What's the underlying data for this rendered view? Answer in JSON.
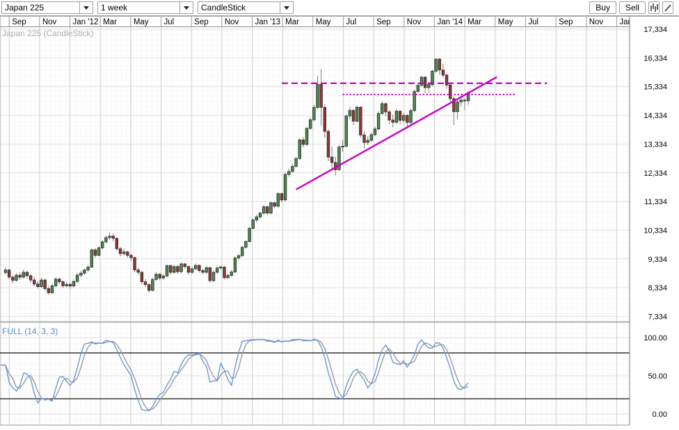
{
  "toolbar": {
    "symbol_select": {
      "value": "Japan 225"
    },
    "interval_select": {
      "value": "1 week"
    },
    "chart_type_select": {
      "value": "CandleStick"
    },
    "buy_label": "Buy",
    "sell_label": "Sell",
    "icons": [
      "bar-chart-icon",
      "trendline-icon",
      "chevron-down-icon"
    ]
  },
  "main_panel": {
    "title": "Japan 225 (CandleStick)",
    "colors": {
      "up_candle": "#4d8950",
      "down_candle": "#933637",
      "wick": "#7d7d7d",
      "annotation": "#c400c4",
      "title_text": "#b0adad",
      "grid_fine": "#f4f1f1",
      "grid_major_h": "#e4e1e1",
      "grid_major_v": "#d2cfcf"
    }
  },
  "indicator_panel": {
    "label": "FULL (14, 3, 3)",
    "label_color": "#5b8cd3",
    "k_line_color": "#6b96d8",
    "d_line_color": "#9a9a9a",
    "overbought_level": 80,
    "oversold_level": 20,
    "y_axis_labels": [
      "100.00",
      "50.00",
      "0.00"
    ]
  },
  "chart_data": [
    {
      "type": "candlestick",
      "title": "Japan 225 (CandleStick)",
      "symbol": "Japan 225",
      "interval": "1 week",
      "x_axis_labels": [
        "Sep",
        "Nov",
        "Jan '12",
        "Mar",
        "May",
        "Jul",
        "Sep",
        "Nov",
        "Jan '13",
        "Mar",
        "May",
        "Jul",
        "Sep",
        "Nov",
        "Jan '14",
        "Mar",
        "May",
        "Jul",
        "Sep",
        "Nov",
        "Jan"
      ],
      "y_axis_labels": [
        "17,334",
        "16,334",
        "15,334",
        "14,334",
        "13,334",
        "12,334",
        "11,334",
        "10,334",
        "9,334",
        "8,334",
        "7,334"
      ],
      "ylim": [
        7334,
        17334
      ],
      "grid": true,
      "ohlc": [
        [
          8860,
          9040,
          8790,
          8950
        ],
        [
          8950,
          9005,
          8620,
          8700
        ],
        [
          8700,
          8760,
          8480,
          8590
        ],
        [
          8590,
          8840,
          8540,
          8770
        ],
        [
          8770,
          8860,
          8605,
          8700
        ],
        [
          8700,
          8970,
          8650,
          8870
        ],
        [
          8870,
          8925,
          8660,
          8750
        ],
        [
          8750,
          8810,
          8510,
          8600
        ],
        [
          8600,
          8720,
          8380,
          8460
        ],
        [
          8460,
          8560,
          8300,
          8370
        ],
        [
          8370,
          8680,
          8320,
          8600
        ],
        [
          8600,
          8640,
          8230,
          8300
        ],
        [
          8300,
          8400,
          8080,
          8160
        ],
        [
          8160,
          8470,
          8110,
          8400
        ],
        [
          8400,
          8700,
          8360,
          8630
        ],
        [
          8630,
          8690,
          8460,
          8540
        ],
        [
          8540,
          8590,
          8330,
          8400
        ],
        [
          8400,
          8530,
          8340,
          8450
        ],
        [
          8450,
          8510,
          8300,
          8390
        ],
        [
          8390,
          8620,
          8350,
          8550
        ],
        [
          8550,
          8840,
          8500,
          8770
        ],
        [
          8770,
          8920,
          8700,
          8840
        ],
        [
          8840,
          9010,
          8780,
          8950
        ],
        [
          8950,
          9120,
          8890,
          9050
        ],
        [
          9050,
          9700,
          9020,
          9650
        ],
        [
          9650,
          9710,
          9380,
          9460
        ],
        [
          9460,
          9780,
          9420,
          9720
        ],
        [
          9720,
          9990,
          9660,
          9930
        ],
        [
          9930,
          10150,
          9870,
          10080
        ],
        [
          10080,
          10255,
          10000,
          10130
        ],
        [
          10130,
          10220,
          9950,
          10050
        ],
        [
          10050,
          10100,
          9620,
          9690
        ],
        [
          9690,
          9750,
          9420,
          9520
        ],
        [
          9520,
          9690,
          9450,
          9580
        ],
        [
          9580,
          9630,
          9380,
          9460
        ],
        [
          9460,
          9520,
          9280,
          9380
        ],
        [
          9380,
          9420,
          8870,
          8950
        ],
        [
          8950,
          9030,
          8780,
          8870
        ],
        [
          8870,
          8920,
          8450,
          8540
        ],
        [
          8540,
          8630,
          8360,
          8440
        ],
        [
          8440,
          8490,
          8160,
          8240
        ],
        [
          8240,
          8680,
          8200,
          8620
        ],
        [
          8620,
          8880,
          8570,
          8800
        ],
        [
          8800,
          8850,
          8590,
          8670
        ],
        [
          8670,
          8810,
          8610,
          8740
        ],
        [
          8740,
          9150,
          8690,
          9100
        ],
        [
          9100,
          9140,
          8790,
          8870
        ],
        [
          8870,
          9120,
          8820,
          9070
        ],
        [
          9070,
          9110,
          8820,
          8890
        ],
        [
          8890,
          9220,
          8840,
          9160
        ],
        [
          9160,
          9200,
          8990,
          9070
        ],
        [
          9070,
          9110,
          8790,
          8870
        ],
        [
          8870,
          9050,
          8820,
          8990
        ],
        [
          8990,
          9170,
          8940,
          9110
        ],
        [
          9110,
          9150,
          8860,
          8930
        ],
        [
          8930,
          8980,
          8800,
          8870
        ],
        [
          8870,
          9090,
          8820,
          9030
        ],
        [
          9030,
          9070,
          8510,
          8580
        ],
        [
          8580,
          8930,
          8530,
          8870
        ],
        [
          8870,
          9080,
          8820,
          9020
        ],
        [
          9020,
          9110,
          8960,
          9050
        ],
        [
          9050,
          9090,
          8620,
          8680
        ],
        [
          8680,
          8830,
          8640,
          8760
        ],
        [
          8760,
          8950,
          8710,
          8880
        ],
        [
          8880,
          9420,
          8840,
          9370
        ],
        [
          9370,
          9500,
          9310,
          9450
        ],
        [
          9450,
          9790,
          9400,
          9740
        ],
        [
          9740,
          9990,
          9700,
          9940
        ],
        [
          9940,
          10450,
          9900,
          10400
        ],
        [
          10400,
          10740,
          10360,
          10690
        ],
        [
          10690,
          10880,
          10620,
          10800
        ],
        [
          10800,
          10980,
          10730,
          10930
        ],
        [
          10930,
          11200,
          10880,
          11150
        ],
        [
          11150,
          11190,
          10860,
          10930
        ],
        [
          10930,
          11340,
          10880,
          11290
        ],
        [
          11290,
          11330,
          11100,
          11170
        ],
        [
          11170,
          11660,
          11120,
          11610
        ],
        [
          11610,
          11650,
          11310,
          11390
        ],
        [
          11390,
          12330,
          11340,
          12280
        ],
        [
          12280,
          12470,
          12200,
          12380
        ],
        [
          12380,
          12650,
          12330,
          12560
        ],
        [
          12560,
          12890,
          12510,
          12830
        ],
        [
          12830,
          13530,
          12780,
          13480
        ],
        [
          13480,
          13570,
          13220,
          13320
        ],
        [
          13320,
          13930,
          13270,
          13880
        ],
        [
          13880,
          14260,
          13830,
          14180
        ],
        [
          14180,
          14700,
          14120,
          14610
        ],
        [
          14610,
          15710,
          14560,
          15410
        ],
        [
          15410,
          15943,
          13980,
          14612
        ],
        [
          14612,
          14720,
          13560,
          13775
        ],
        [
          13775,
          13850,
          12740,
          12880
        ],
        [
          12880,
          13240,
          12420,
          12690
        ],
        [
          12690,
          12900,
          12240,
          12440
        ],
        [
          12440,
          13290,
          12400,
          13230
        ],
        [
          13230,
          13480,
          13060,
          13260
        ],
        [
          13260,
          14360,
          13210,
          14310
        ],
        [
          14310,
          14620,
          14200,
          14506
        ],
        [
          14506,
          14560,
          13990,
          14130
        ],
        [
          14130,
          14670,
          14080,
          14617
        ],
        [
          14617,
          14660,
          13560,
          13650
        ],
        [
          13650,
          13780,
          13190,
          13390
        ],
        [
          13390,
          13610,
          13300,
          13465
        ],
        [
          13465,
          13750,
          13410,
          13660
        ],
        [
          13660,
          13940,
          13610,
          13860
        ],
        [
          13860,
          14470,
          13810,
          14400
        ],
        [
          14400,
          14820,
          14350,
          14740
        ],
        [
          14740,
          14780,
          14310,
          14455
        ],
        [
          14455,
          14510,
          14020,
          14170
        ],
        [
          14170,
          14350,
          13910,
          14090
        ],
        [
          14090,
          14560,
          14040,
          14480
        ],
        [
          14480,
          14520,
          14030,
          14160
        ],
        [
          14160,
          14420,
          14080,
          14330
        ],
        [
          14330,
          14380,
          13870,
          14087
        ],
        [
          14087,
          14570,
          14030,
          14500
        ],
        [
          14500,
          15230,
          14450,
          15165
        ],
        [
          15165,
          15450,
          15110,
          15382
        ],
        [
          15382,
          15710,
          15330,
          15662
        ],
        [
          15662,
          15700,
          15100,
          15300
        ],
        [
          15300,
          15470,
          15150,
          15403
        ],
        [
          15403,
          15930,
          15350,
          15870
        ],
        [
          15870,
          16320,
          15820,
          16291
        ],
        [
          16291,
          16330,
          15750,
          15912
        ],
        [
          15912,
          16120,
          15640,
          15734
        ],
        [
          15734,
          15800,
          15260,
          15392
        ],
        [
          15392,
          15440,
          14810,
          14915
        ],
        [
          14915,
          14980,
          13995,
          14460
        ],
        [
          14460,
          14870,
          14200,
          14800
        ],
        [
          14800,
          15010,
          14650,
          14865
        ],
        [
          14865,
          14920,
          14520,
          14841
        ],
        [
          14841,
          15180,
          14690,
          15120
        ]
      ],
      "trendlines": [
        {
          "name": "horizontal-resistance",
          "style": "dashed",
          "price1": 15450,
          "price2": 15450,
          "i1": 77,
          "i2": 151
        },
        {
          "name": "minor-resistance",
          "style": "dotted",
          "price1": 15060,
          "price2": 15060,
          "i1": 94,
          "i2": 142
        },
        {
          "name": "rising-support",
          "style": "solid",
          "price1": 11750,
          "price2": 15670,
          "i1": 81,
          "i2": 137
        }
      ],
      "legend_position": "none"
    },
    {
      "type": "line",
      "title": "FULL (14, 3, 3)",
      "indicator": "full-stochastic",
      "params": [
        14,
        3,
        3
      ],
      "series_note": "%K (blue) and %D (gray) computed from the ohlc series above",
      "reference_levels": [
        80,
        20
      ],
      "ylim": [
        0,
        100
      ],
      "y_axis_labels": [
        "100.00",
        "50.00",
        "0.00"
      ],
      "grid": true
    }
  ]
}
